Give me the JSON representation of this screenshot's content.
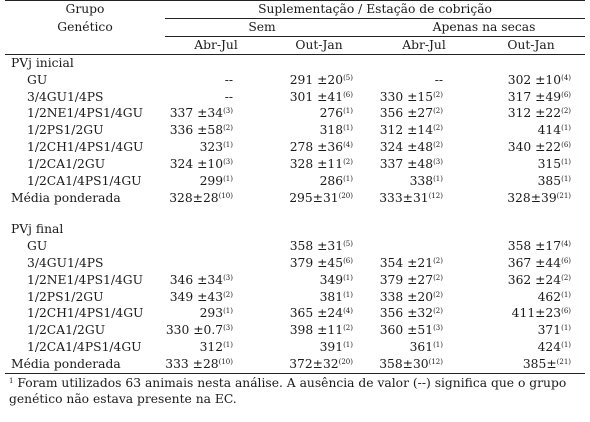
{
  "header": {
    "group_line1": "Grupo",
    "group_line2": "Genético",
    "supplementation_header": "Suplementação / Estação de cobrição",
    "sem": "Sem",
    "apenas": "Apenas na secas",
    "abr_jul_1": "Abr-Jul",
    "out_jan_1": "Out-Jan",
    "abr_jul_2": "Abr-Jul",
    "out_jan_2": "Out-Jan"
  },
  "sections": [
    {
      "title": "PVj inicial",
      "rows": [
        {
          "label": "GU",
          "c1": {
            "v": "--",
            "n": ""
          },
          "c2": {
            "v": "291 ±20",
            "n": "(5)"
          },
          "c3": {
            "v": "--",
            "n": ""
          },
          "c4": {
            "v": "302 ±10",
            "n": "(4)"
          }
        },
        {
          "label": "3/4GU1/4PS",
          "c1": {
            "v": "--",
            "n": ""
          },
          "c2": {
            "v": "301 ±41",
            "n": "(6)"
          },
          "c3": {
            "v": "330 ±15",
            "n": "(2)"
          },
          "c4": {
            "v": "317 ±49",
            "n": "(6)"
          }
        },
        {
          "label": "1/2NE1/4PS1/4GU",
          "c1": {
            "v": "337 ±34",
            "n": "(3)"
          },
          "c2": {
            "v": "276",
            "n": "(1)"
          },
          "c3": {
            "v": "356 ±27",
            "n": "(2)"
          },
          "c4": {
            "v": "312 ±22",
            "n": "(2)"
          }
        },
        {
          "label": "1/2PS1/2GU",
          "c1": {
            "v": "336 ±58",
            "n": "(2)"
          },
          "c2": {
            "v": "318",
            "n": "(1)"
          },
          "c3": {
            "v": "312 ±14",
            "n": "(2)"
          },
          "c4": {
            "v": "414",
            "n": "(1)"
          }
        },
        {
          "label": "1/2CH1/4PS1/4GU",
          "c1": {
            "v": "323",
            "n": "(1)"
          },
          "c2": {
            "v": "278 ±36",
            "n": "(4)"
          },
          "c3": {
            "v": "324 ±48",
            "n": "(2)"
          },
          "c4": {
            "v": "340 ±22",
            "n": "(6)"
          }
        },
        {
          "label": "1/2CA1/2GU",
          "c1": {
            "v": "324 ±10",
            "n": "(3)"
          },
          "c2": {
            "v": "328 ±11",
            "n": "(2)"
          },
          "c3": {
            "v": "337 ±48",
            "n": "(3)"
          },
          "c4": {
            "v": "315",
            "n": "(1)"
          }
        },
        {
          "label": "1/2CA1/4PS1/4GU",
          "c1": {
            "v": "299",
            "n": "(1)"
          },
          "c2": {
            "v": "286",
            "n": "(1)"
          },
          "c3": {
            "v": "338",
            "n": "(1)"
          },
          "c4": {
            "v": "385",
            "n": "(1)"
          }
        }
      ],
      "weighted": {
        "label": "Média ponderada",
        "c1": {
          "v": "328±28",
          "n": "(10)"
        },
        "c2": {
          "v": "295±31",
          "n": "(20)"
        },
        "c3": {
          "v": "333±31",
          "n": "(12)"
        },
        "c4": {
          "v": "328±39",
          "n": "(21)"
        }
      }
    },
    {
      "title": "PVj final",
      "rows": [
        {
          "label": "GU",
          "c1": {
            "v": "",
            "n": ""
          },
          "c2": {
            "v": "358 ±31",
            "n": "(5)"
          },
          "c3": {
            "v": "",
            "n": ""
          },
          "c4": {
            "v": "358 ±17",
            "n": "(4)"
          }
        },
        {
          "label": "3/4GU1/4PS",
          "c1": {
            "v": "",
            "n": ""
          },
          "c2": {
            "v": "379 ±45",
            "n": "(6)"
          },
          "c3": {
            "v": "354 ±21",
            "n": "(2)"
          },
          "c4": {
            "v": "367 ±44",
            "n": "(6)"
          }
        },
        {
          "label": "1/2NE1/4PS1/4GU",
          "c1": {
            "v": "346 ±34",
            "n": "(3)"
          },
          "c2": {
            "v": "349",
            "n": "(1)"
          },
          "c3": {
            "v": "379 ±27",
            "n": "(2)"
          },
          "c4": {
            "v": "362 ±24",
            "n": "(2)"
          }
        },
        {
          "label": "1/2PS1/2GU",
          "c1": {
            "v": "349 ±43",
            "n": "(2)"
          },
          "c2": {
            "v": "381",
            "n": "(1)"
          },
          "c3": {
            "v": "338 ±20",
            "n": "(2)"
          },
          "c4": {
            "v": "462",
            "n": "(1)"
          }
        },
        {
          "label": "1/2CH1/4PS1/4GU",
          "c1": {
            "v": "293",
            "n": "(1)"
          },
          "c2": {
            "v": "365 ±24",
            "n": "(4)"
          },
          "c3": {
            "v": "356 ±32",
            "n": "(2)"
          },
          "c4": {
            "v": "411±23",
            "n": "(6)"
          }
        },
        {
          "label": "1/2CA1/2GU",
          "c1": {
            "v": "330 ±0.7",
            "n": "(3)"
          },
          "c2": {
            "v": "398 ±11",
            "n": "(2)"
          },
          "c3": {
            "v": "360 ±51",
            "n": "(3)"
          },
          "c4": {
            "v": "371",
            "n": "(1)"
          }
        },
        {
          "label": "1/2CA1/4PS1/4GU",
          "c1": {
            "v": "312",
            "n": "(1)"
          },
          "c2": {
            "v": "391",
            "n": "(1)"
          },
          "c3": {
            "v": "361",
            "n": "(1)"
          },
          "c4": {
            "v": "424",
            "n": "(1)"
          }
        }
      ],
      "weighted": {
        "label": "Média ponderada",
        "c1": {
          "v": "333 ±28",
          "n": "(10)"
        },
        "c2": {
          "v": "372±32",
          "n": "(20)"
        },
        "c3": {
          "v": "358±30",
          "n": "(12)"
        },
        "c4": {
          "v": "385±",
          "n": "(21)"
        }
      }
    }
  ],
  "footnote": {
    "marker": "1",
    "text": " Foram utilizados 63 animais nesta análise. A ausência de valor (--) significa que o grupo genético não estava presente na EC."
  }
}
